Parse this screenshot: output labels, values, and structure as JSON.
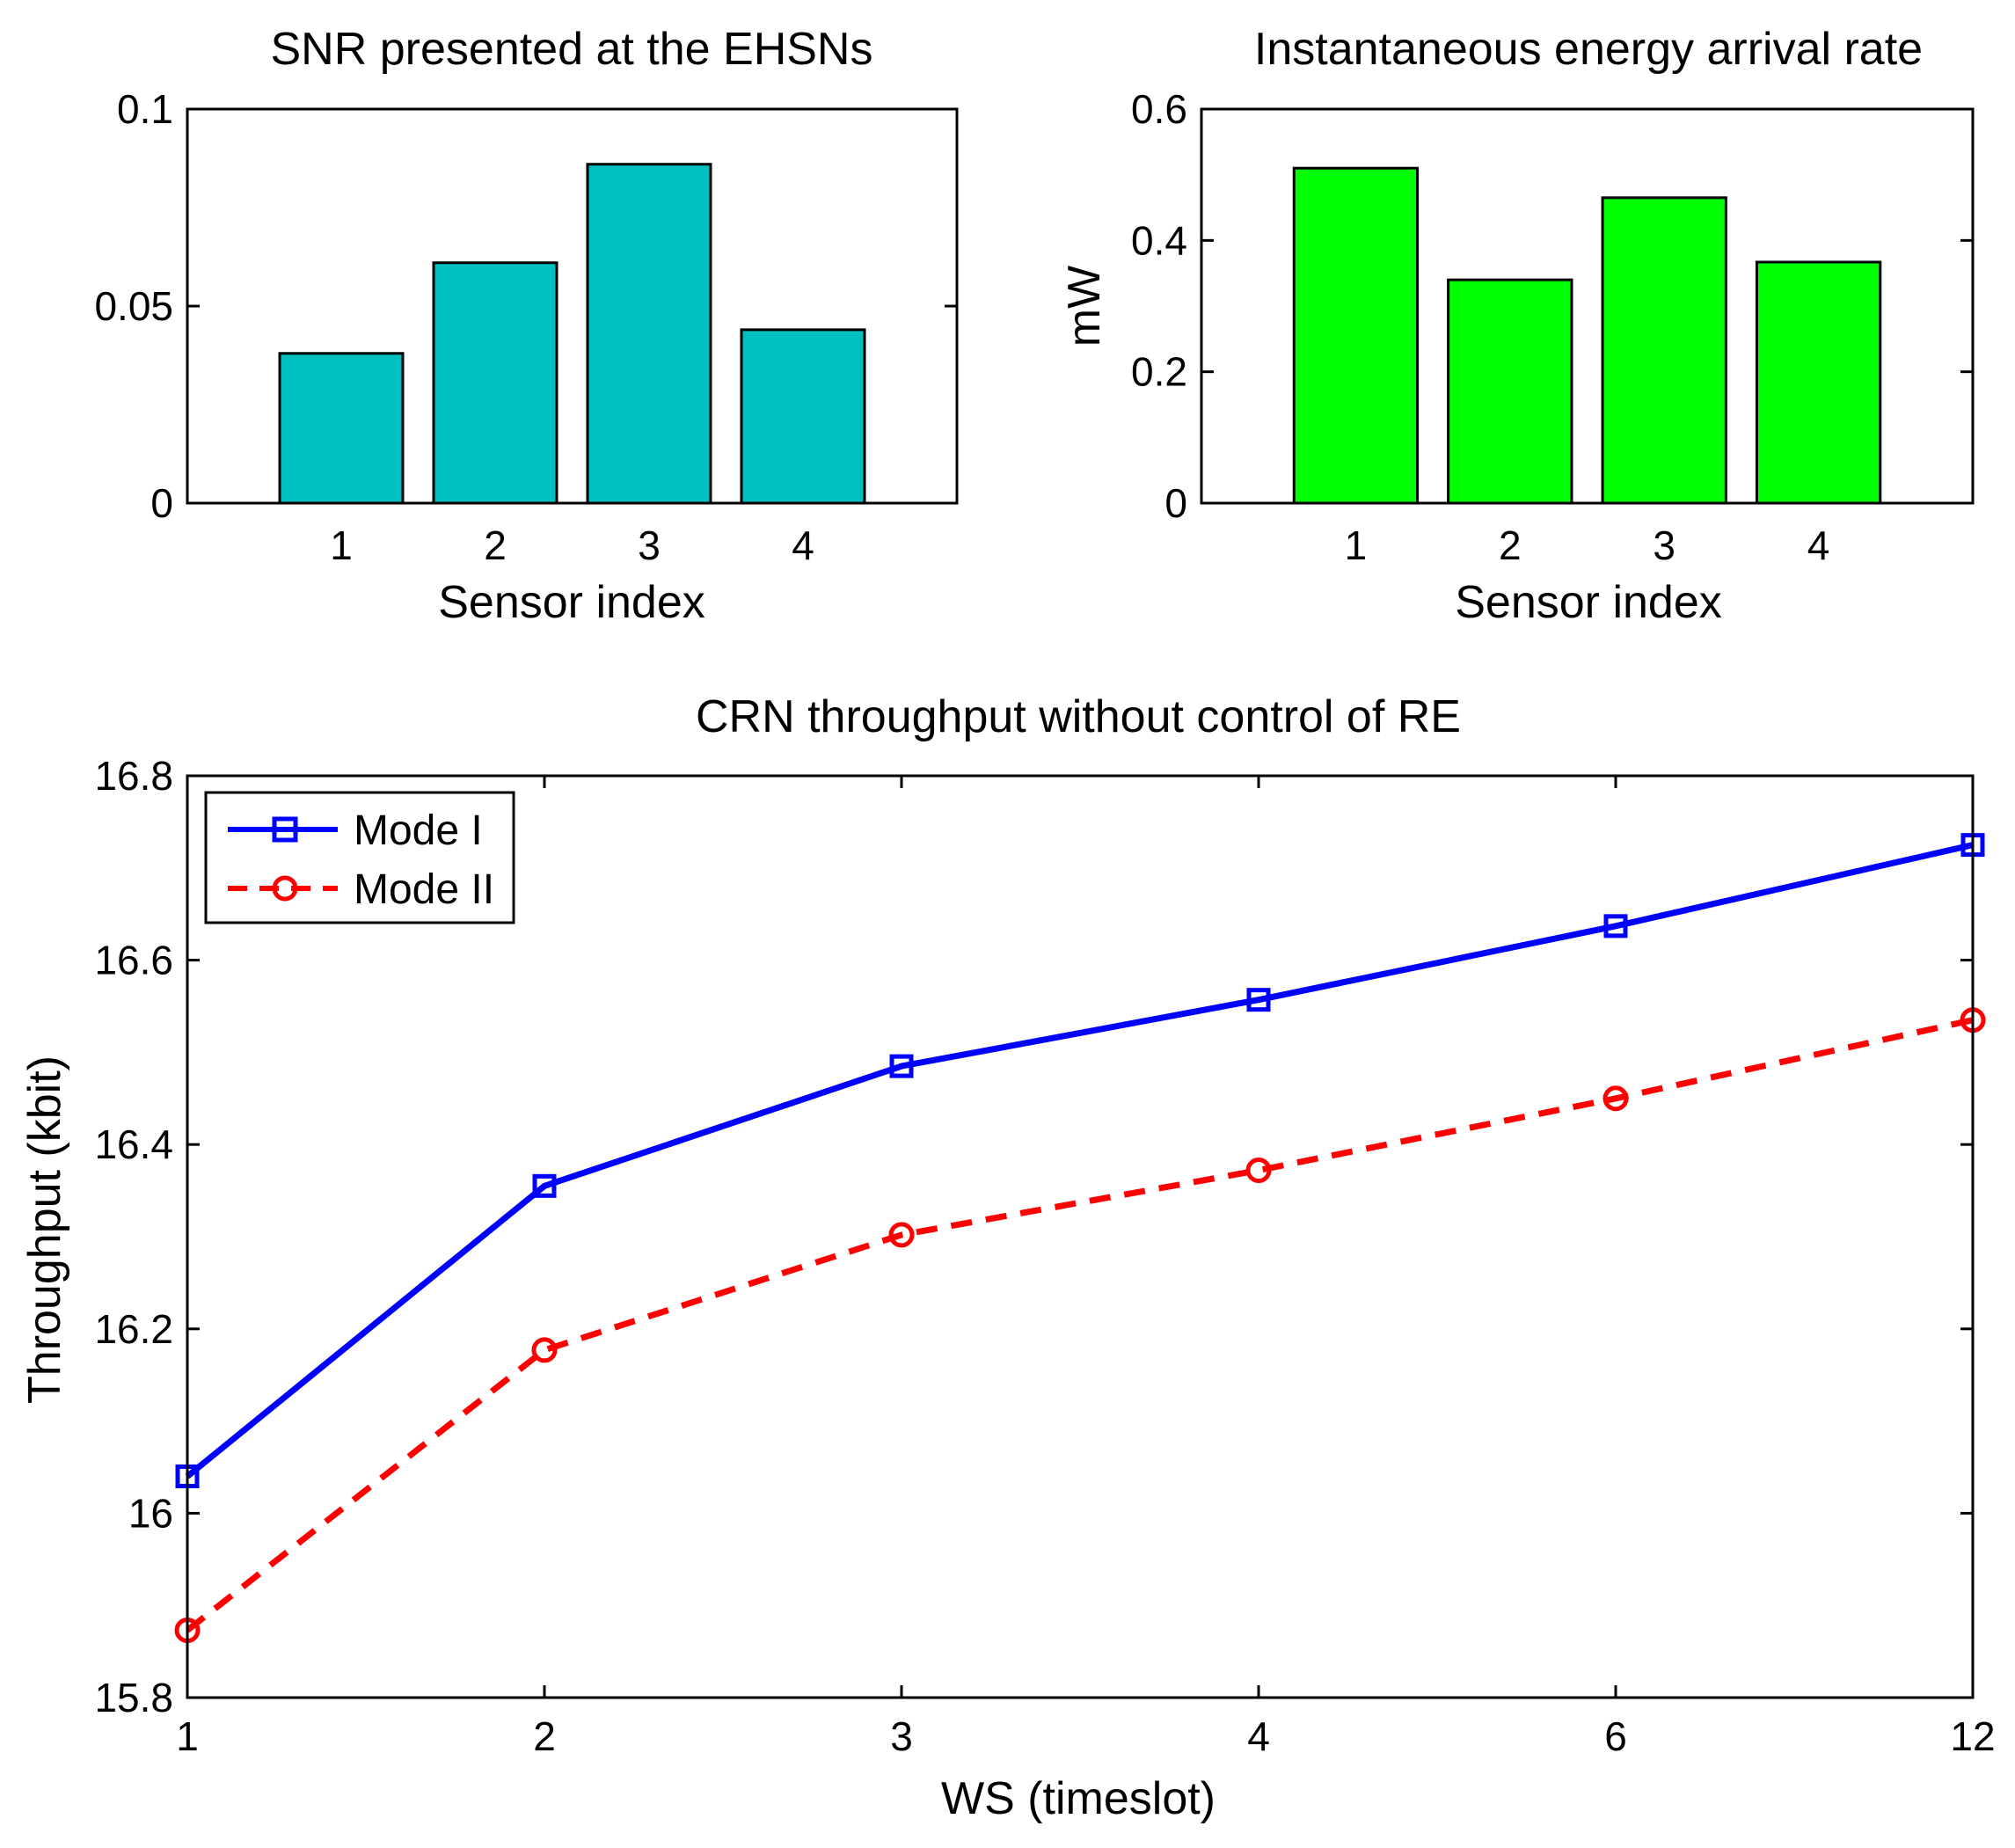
{
  "chart_data": [
    {
      "id": "snr",
      "type": "bar",
      "title": "SNR presented at the EHSNs",
      "xlabel": "Sensor index",
      "ylabel": "",
      "categories": [
        "1",
        "2",
        "3",
        "4"
      ],
      "values": [
        0.038,
        0.061,
        0.086,
        0.044
      ],
      "ylim": [
        0,
        0.1
      ],
      "yticks": [
        0,
        0.05,
        0.1
      ],
      "ytick_labels": [
        "0",
        "0.05",
        "0.1"
      ],
      "xlim": [
        0,
        5
      ],
      "bar_color": "#00c0c0"
    },
    {
      "id": "energy",
      "type": "bar",
      "title": "Instantaneous energy arrival rate",
      "xlabel": "Sensor index",
      "ylabel": "mW",
      "categories": [
        "1",
        "2",
        "3",
        "4"
      ],
      "values": [
        0.51,
        0.34,
        0.465,
        0.367
      ],
      "ylim": [
        0,
        0.6
      ],
      "yticks": [
        0,
        0.2,
        0.4,
        0.6
      ],
      "ytick_labels": [
        "0",
        "0.2",
        "0.4",
        "0.6"
      ],
      "xlim": [
        0,
        5
      ],
      "bar_color": "#00ff00"
    },
    {
      "id": "throughput",
      "type": "line",
      "title": "CRN throughput without control of RE",
      "xlabel": "WS (timeslot)",
      "ylabel": "Throughput (kbit)",
      "categories": [
        "1",
        "2",
        "3",
        "4",
        "6",
        "12"
      ],
      "ylim": [
        15.8,
        16.8
      ],
      "yticks": [
        15.8,
        16,
        16.2,
        16.4,
        16.6,
        16.8
      ],
      "ytick_labels": [
        "15.8",
        "16",
        "16.2",
        "16.4",
        "16.6",
        "16.8"
      ],
      "legend_position": "top-left",
      "series": [
        {
          "name": "Mode I",
          "values": [
            16.04,
            16.355,
            16.485,
            16.557,
            16.637,
            16.725
          ],
          "color": "#0000ff",
          "marker": "square",
          "dash": "solid"
        },
        {
          "name": "Mode II",
          "values": [
            15.873,
            16.177,
            16.302,
            16.372,
            16.45,
            16.535
          ],
          "color": "#ff0000",
          "marker": "circle",
          "dash": "dashed"
        }
      ]
    }
  ]
}
